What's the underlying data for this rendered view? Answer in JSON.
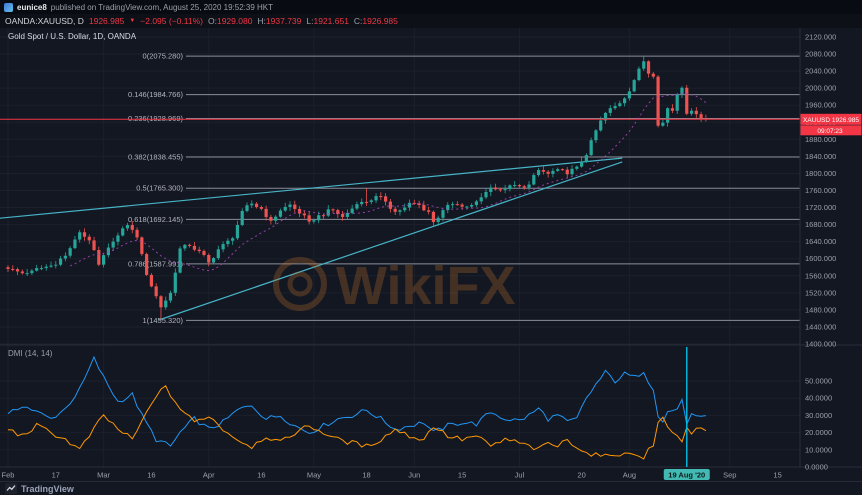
{
  "header": {
    "published_by": "eunice8",
    "published_rest": "published on TradingView.com, August 25, 2020 19:52:39 HKT"
  },
  "symbol_bar": {
    "symbol": "OANDA:XAUUSD, D",
    "last": "1926.985",
    "arrow": "▼",
    "change": "−2.095 (−0.11%)",
    "o_label": "O:",
    "o": "1929.080",
    "h_label": "H:",
    "h": "1937.739",
    "l_label": "L:",
    "l": "1921.651",
    "c_label": "C:",
    "c": "1926.985"
  },
  "footer": {
    "brand": "TradingView"
  },
  "watermark": {
    "text": "WikiFX"
  },
  "chart_data": {
    "type": "candlestick",
    "title": "Gold Spot / U.S. Dollar, 1D, OANDA",
    "symbol": "XAUUSD",
    "timeframe": "1D",
    "price_axis": {
      "ticks": [
        2120,
        2080,
        2040,
        2000,
        1960,
        1920,
        1880,
        1840,
        1800,
        1760,
        1720,
        1680,
        1640,
        1600,
        1560,
        1520,
        1480,
        1440,
        1400
      ]
    },
    "fib_levels": [
      {
        "ratio": "0",
        "value": 2075.28
      },
      {
        "ratio": "0.146",
        "value": 1984.766
      },
      {
        "ratio": "0.236",
        "value": 1928.969
      },
      {
        "ratio": "0.382",
        "value": 1838.455
      },
      {
        "ratio": "0.5",
        "value": 1765.3
      },
      {
        "ratio": "0.618",
        "value": 1692.145
      },
      {
        "ratio": "0.786",
        "value": 1587.991
      },
      {
        "ratio": "1",
        "value": 1455.32
      }
    ],
    "last_price": 1926.985,
    "price_label": {
      "symbol": "XAUUSD",
      "value": "1926.985",
      "countdown": "09:07:23"
    },
    "candles": {
      "count": 147,
      "close_waypoints": [
        [
          0,
          1576
        ],
        [
          3,
          1566
        ],
        [
          5,
          1572
        ],
        [
          9,
          1584
        ],
        [
          12,
          1607
        ],
        [
          14,
          1645
        ],
        [
          15,
          1662
        ],
        [
          17,
          1643
        ],
        [
          19,
          1586
        ],
        [
          22,
          1640
        ],
        [
          25,
          1679
        ],
        [
          27,
          1650
        ],
        [
          29,
          1562
        ],
        [
          31,
          1512
        ],
        [
          32,
          1486
        ],
        [
          34,
          1520
        ],
        [
          36,
          1624
        ],
        [
          38,
          1630
        ],
        [
          40,
          1618
        ],
        [
          42,
          1591
        ],
        [
          44,
          1622
        ],
        [
          47,
          1648
        ],
        [
          49,
          1712
        ],
        [
          51,
          1729
        ],
        [
          53,
          1717
        ],
        [
          55,
          1689
        ],
        [
          57,
          1713
        ],
        [
          59,
          1727
        ],
        [
          61,
          1706
        ],
        [
          63,
          1687
        ],
        [
          65,
          1702
        ],
        [
          68,
          1714
        ],
        [
          70,
          1698
        ],
        [
          73,
          1728
        ],
        [
          75,
          1733
        ],
        [
          77,
          1747
        ],
        [
          79,
          1734
        ],
        [
          81,
          1710
        ],
        [
          83,
          1720
        ],
        [
          84,
          1731
        ],
        [
          86,
          1726
        ],
        [
          88,
          1710
        ],
        [
          89,
          1686
        ],
        [
          91,
          1714
        ],
        [
          93,
          1728
        ],
        [
          95,
          1722
        ],
        [
          97,
          1726
        ],
        [
          99,
          1744
        ],
        [
          101,
          1767
        ],
        [
          103,
          1762
        ],
        [
          105,
          1772
        ],
        [
          107,
          1770
        ],
        [
          109,
          1774
        ],
        [
          111,
          1808
        ],
        [
          113,
          1799
        ],
        [
          115,
          1810
        ],
        [
          117,
          1798
        ],
        [
          119,
          1816
        ],
        [
          121,
          1843
        ],
        [
          123,
          1901
        ],
        [
          125,
          1942
        ],
        [
          127,
          1958
        ],
        [
          129,
          1976
        ],
        [
          131,
          2019
        ],
        [
          133,
          2063
        ],
        [
          134,
          2034
        ],
        [
          135,
          2027
        ],
        [
          136,
          1912
        ],
        [
          137,
          1919
        ],
        [
          138,
          1953
        ],
        [
          139,
          1947
        ],
        [
          140,
          1986
        ],
        [
          141,
          2001
        ],
        [
          142,
          1940
        ],
        [
          143,
          1947
        ],
        [
          144,
          1939
        ],
        [
          145,
          1929
        ],
        [
          146,
          1926.985
        ]
      ],
      "anchors": [
        {
          "day": 32,
          "low": 1455.32
        },
        {
          "day": 75,
          "high": 1765.3
        },
        {
          "day": 133,
          "high": 2075.28
        },
        {
          "day": 146,
          "open": 1929.08,
          "high": 1937.739,
          "low": 1921.651,
          "close": 1926.985
        }
      ]
    },
    "ma": {
      "period": 14
    },
    "trendlines": [
      {
        "d1": -1.7,
        "p1": 1695,
        "d2": 128.5,
        "p2": 1836
      },
      {
        "d1": 31.5,
        "p1": 1456,
        "d2": 128.5,
        "p2": 1827
      }
    ],
    "dmi": {
      "label": "DMI (14, 14)",
      "ticks": [
        50,
        40,
        30,
        20,
        10,
        0
      ],
      "plus_di": [
        [
          0,
          30
        ],
        [
          3,
          36
        ],
        [
          6,
          32
        ],
        [
          9,
          28
        ],
        [
          12,
          34
        ],
        [
          15,
          45
        ],
        [
          18,
          63
        ],
        [
          20,
          52
        ],
        [
          23,
          38
        ],
        [
          26,
          42
        ],
        [
          28,
          30
        ],
        [
          31,
          16
        ],
        [
          34,
          12
        ],
        [
          36,
          20
        ],
        [
          39,
          28
        ],
        [
          42,
          22
        ],
        [
          45,
          26
        ],
        [
          48,
          33
        ],
        [
          51,
          36
        ],
        [
          54,
          28
        ],
        [
          57,
          30
        ],
        [
          60,
          24
        ],
        [
          63,
          20
        ],
        [
          66,
          24
        ],
        [
          69,
          28
        ],
        [
          72,
          30
        ],
        [
          75,
          33
        ],
        [
          78,
          28
        ],
        [
          81,
          22
        ],
        [
          84,
          24
        ],
        [
          87,
          26
        ],
        [
          89,
          20
        ],
        [
          92,
          24
        ],
        [
          95,
          26
        ],
        [
          98,
          25
        ],
        [
          101,
          32
        ],
        [
          104,
          28
        ],
        [
          107,
          27
        ],
        [
          109,
          30
        ],
        [
          111,
          34
        ],
        [
          113,
          28
        ],
        [
          115,
          30
        ],
        [
          117,
          26
        ],
        [
          119,
          28
        ],
        [
          121,
          40
        ],
        [
          123,
          48
        ],
        [
          125,
          55
        ],
        [
          127,
          50
        ],
        [
          129,
          54
        ],
        [
          131,
          52
        ],
        [
          133,
          56
        ],
        [
          134,
          50
        ],
        [
          135,
          46
        ],
        [
          136,
          30
        ],
        [
          137,
          26
        ],
        [
          138,
          32
        ],
        [
          140,
          34
        ],
        [
          141,
          38
        ],
        [
          142,
          26
        ],
        [
          143,
          30
        ],
        [
          144,
          29
        ],
        [
          145,
          28
        ],
        [
          146,
          29
        ]
      ],
      "minus_di": [
        [
          0,
          22
        ],
        [
          3,
          18
        ],
        [
          6,
          24
        ],
        [
          9,
          20
        ],
        [
          12,
          16
        ],
        [
          15,
          10
        ],
        [
          18,
          22
        ],
        [
          20,
          30
        ],
        [
          23,
          22
        ],
        [
          26,
          16
        ],
        [
          28,
          26
        ],
        [
          31,
          42
        ],
        [
          33,
          46
        ],
        [
          36,
          34
        ],
        [
          39,
          26
        ],
        [
          42,
          30
        ],
        [
          45,
          22
        ],
        [
          48,
          16
        ],
        [
          51,
          12
        ],
        [
          54,
          18
        ],
        [
          57,
          14
        ],
        [
          60,
          20
        ],
        [
          63,
          24
        ],
        [
          66,
          20
        ],
        [
          69,
          16
        ],
        [
          72,
          14
        ],
        [
          75,
          12
        ],
        [
          78,
          16
        ],
        [
          81,
          22
        ],
        [
          84,
          18
        ],
        [
          87,
          16
        ],
        [
          89,
          24
        ],
        [
          92,
          18
        ],
        [
          95,
          16
        ],
        [
          98,
          18
        ],
        [
          101,
          12
        ],
        [
          104,
          16
        ],
        [
          107,
          14
        ],
        [
          109,
          12
        ],
        [
          111,
          10
        ],
        [
          113,
          14
        ],
        [
          115,
          12
        ],
        [
          117,
          16
        ],
        [
          119,
          12
        ],
        [
          121,
          8
        ],
        [
          123,
          7
        ],
        [
          125,
          6
        ],
        [
          127,
          8
        ],
        [
          129,
          7
        ],
        [
          131,
          8
        ],
        [
          133,
          6
        ],
        [
          134,
          10
        ],
        [
          135,
          12
        ],
        [
          136,
          26
        ],
        [
          137,
          30
        ],
        [
          138,
          22
        ],
        [
          140,
          18
        ],
        [
          141,
          14
        ],
        [
          142,
          24
        ],
        [
          143,
          20
        ],
        [
          144,
          22
        ],
        [
          145,
          23
        ],
        [
          146,
          22
        ]
      ]
    },
    "event_line": {
      "day": 142,
      "badge_label": "19 Aug '20"
    },
    "time_axis": [
      {
        "label": "Feb",
        "day": 0
      },
      {
        "label": "17",
        "day": 10
      },
      {
        "label": "Mar",
        "day": 20
      },
      {
        "label": "16",
        "day": 30
      },
      {
        "label": "Apr",
        "day": 42
      },
      {
        "label": "16",
        "day": 53
      },
      {
        "label": "May",
        "day": 64
      },
      {
        "label": "18",
        "day": 75
      },
      {
        "label": "Jun",
        "day": 85
      },
      {
        "label": "15",
        "day": 95
      },
      {
        "label": "Jul",
        "day": 107
      },
      {
        "label": "20",
        "day": 120
      },
      {
        "label": "Aug",
        "day": 130
      },
      {
        "label": "19 Aug '20",
        "day": 142,
        "highlight": true
      },
      {
        "label": "Sep",
        "day": 151
      },
      {
        "label": "15",
        "day": 161
      }
    ],
    "month_grid_days": [
      0,
      20,
      42,
      64,
      85,
      107,
      130,
      151
    ],
    "colors": {
      "up": "#26a69a",
      "down": "#ef5350",
      "fib": "#8a8e99",
      "fib_text": "#b2b5be",
      "trend": "#46b4c6",
      "ma": "#ab47bc",
      "last_price": "#f23645",
      "plus_di": "#2196f3",
      "minus_di": "#ff9800",
      "event_line": "#00bce5",
      "event_badge": "#42b9b2",
      "watermark": "#c8702a",
      "axis_text": "#9aa0aa",
      "legend_text": "#d8dce6",
      "grid": "#1b202b",
      "separator": "#2a2e39"
    }
  }
}
